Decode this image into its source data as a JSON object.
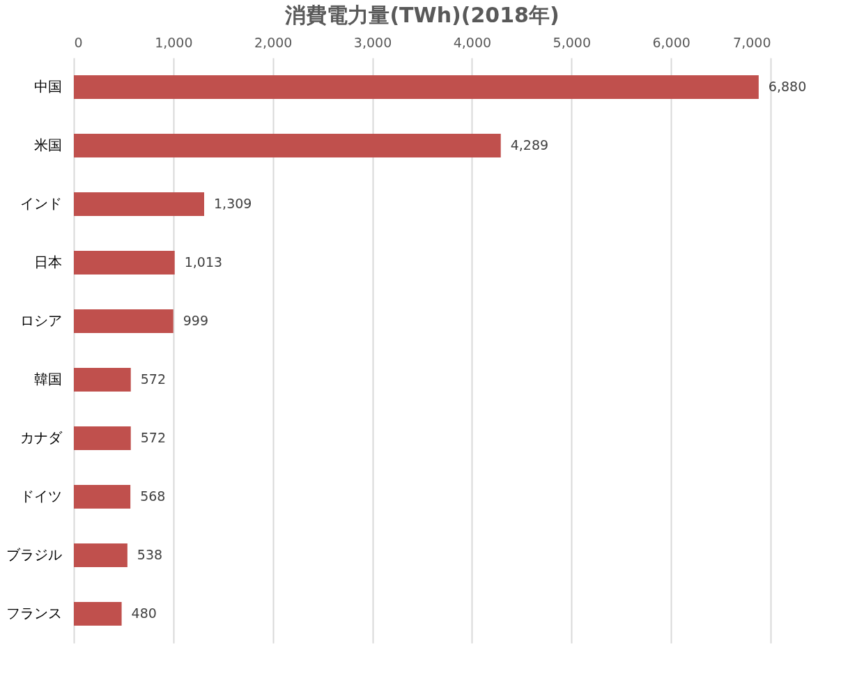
{
  "chart_data": {
    "type": "bar",
    "orientation": "horizontal",
    "title": "消費電力量(TWh)(2018年)",
    "categories": [
      "中国",
      "米国",
      "インド",
      "日本",
      "ロシア",
      "韓国",
      "カナダ",
      "ドイツ",
      "ブラジル",
      "フランス"
    ],
    "values": [
      6880,
      4289,
      1309,
      1013,
      999,
      572,
      572,
      568,
      538,
      480
    ],
    "value_labels": [
      "6,880",
      "4,289",
      "1,309",
      "1,013",
      "999",
      "572",
      "572",
      "568",
      "538",
      "480"
    ],
    "color": "#c0504d",
    "xlim": [
      0,
      7000
    ],
    "xticks": [
      0,
      {
        "value": 1000,
        "label": "1,000"
      },
      {
        "value": 2000,
        "label": "2,000"
      },
      {
        "value": 3000,
        "label": "3,000"
      },
      {
        "value": 4000,
        "label": "4,000"
      },
      {
        "value": 5000,
        "label": "5,000"
      },
      {
        "value": 6000,
        "label": "6,000"
      },
      {
        "value": 7000,
        "label": "7,000"
      }
    ],
    "grid": "x"
  }
}
